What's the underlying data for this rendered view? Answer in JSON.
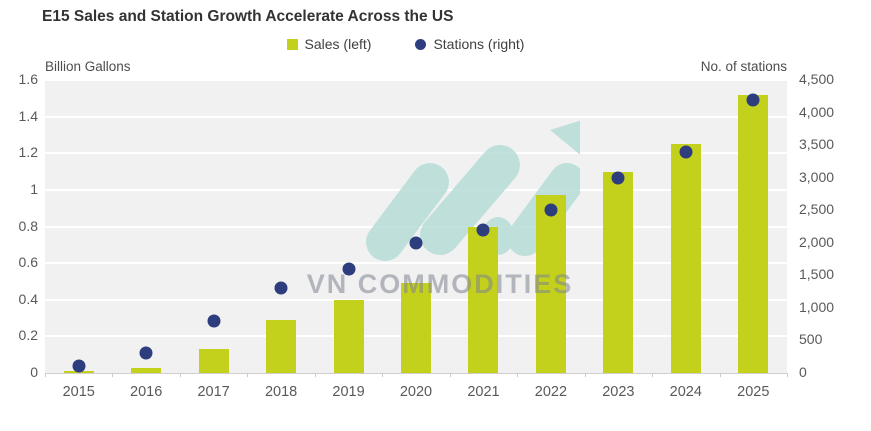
{
  "title": "E15 Sales and Station Growth Accelerate Across the US",
  "legend": {
    "sales_label": "Sales (left)",
    "stations_label": "Stations (right)"
  },
  "watermark": {
    "text": "VN COMMODITIES"
  },
  "colors": {
    "bar": "#c3d11d",
    "dot": "#2e3d7e",
    "plot_bg": "#f1f1f2",
    "gridline": "#ffffff",
    "watermark_teal": "#b7ded6",
    "watermark_text": "rgba(125,132,142,0.55)"
  },
  "chart_data": {
    "type": "bar",
    "categories": [
      "2015",
      "2016",
      "2017",
      "2018",
      "2019",
      "2020",
      "2021",
      "2022",
      "2023",
      "2024",
      "2025"
    ],
    "series": [
      {
        "name": "Sales (left)",
        "render": "bar",
        "axis": "left",
        "values": [
          0.01,
          0.03,
          0.13,
          0.29,
          0.4,
          0.49,
          0.8,
          0.97,
          1.1,
          1.25,
          1.52
        ]
      },
      {
        "name": "Stations (right)",
        "render": "scatter",
        "axis": "right",
        "values": [
          100,
          300,
          800,
          1300,
          1600,
          2000,
          2200,
          2500,
          3000,
          3400,
          4200
        ]
      }
    ],
    "title": "E15 Sales and Station Growth Accelerate Across the US",
    "left_axis": {
      "label": "Billion Gallons",
      "min": 0,
      "max": 1.6,
      "tick_step": 0.2,
      "ticks_top_to_bottom": [
        "1.6",
        "1.4",
        "1.2",
        "1",
        "0.8",
        "0.6",
        "0.4",
        "0.2",
        "0"
      ]
    },
    "right_axis": {
      "label": "No. of stations",
      "min": 0,
      "max": 4500,
      "tick_step": 500,
      "ticks_top_to_bottom": [
        "4,500",
        "4,000",
        "3,500",
        "3,000",
        "2,500",
        "2,000",
        "1,500",
        "1,000",
        "500",
        "0"
      ]
    },
    "grid": true,
    "legend_position": "top"
  }
}
